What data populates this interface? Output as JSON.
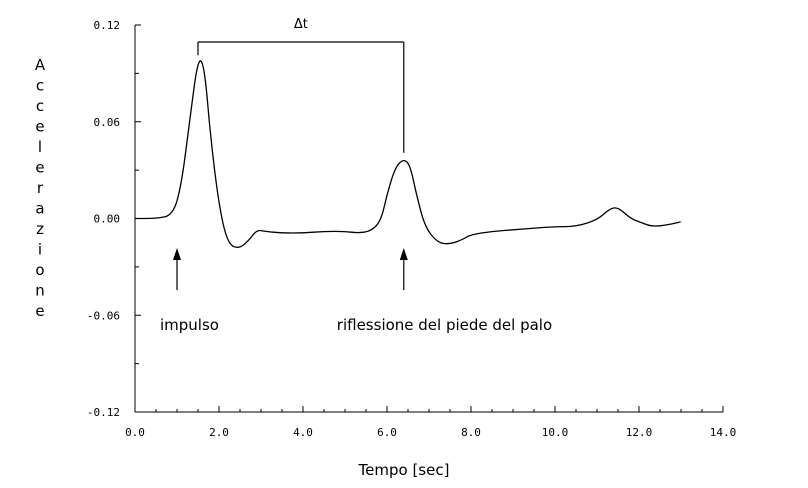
{
  "chart_data": {
    "type": "line",
    "xlabel": "Tempo [sec]",
    "ylabel": "Accelerazione",
    "xlim": [
      0,
      14
    ],
    "ylim": [
      -0.12,
      0.12
    ],
    "x_ticks": [
      "0.0",
      "2.0",
      "4.0",
      "6.0",
      "8.0",
      "10.0",
      "12.0",
      "14.0"
    ],
    "y_ticks": [
      "0.12",
      "0.06",
      "0.00",
      "-0.06",
      "-0.12"
    ],
    "series": [
      {
        "x": [
          0.0,
          0.5,
          0.9,
          1.1,
          1.3,
          1.5,
          1.65,
          1.8,
          2.0,
          2.2,
          2.45,
          2.7,
          2.9,
          3.1,
          3.5,
          4.0,
          4.5,
          5.0,
          5.3,
          5.6,
          5.85,
          6.0,
          6.2,
          6.4,
          6.55,
          6.7,
          6.9,
          7.2,
          7.5,
          7.8,
          8.0,
          8.5,
          9.0,
          9.5,
          10.0,
          10.5,
          11.0,
          11.3,
          11.5,
          11.8,
          12.0,
          12.3,
          12.7,
          13.0
        ],
        "y": [
          0.0,
          0.0,
          0.002,
          0.02,
          0.06,
          0.1,
          0.095,
          0.05,
          0.008,
          -0.015,
          -0.019,
          -0.014,
          -0.007,
          -0.008,
          -0.009,
          -0.009,
          -0.008,
          -0.008,
          -0.009,
          -0.008,
          -0.002,
          0.015,
          0.032,
          0.037,
          0.033,
          0.015,
          -0.005,
          -0.015,
          -0.016,
          -0.013,
          -0.01,
          -0.008,
          -0.007,
          -0.006,
          -0.005,
          -0.005,
          -0.001,
          0.006,
          0.007,
          0.0,
          -0.002,
          -0.005,
          -0.004,
          -0.002
        ]
      }
    ],
    "delta_label": "Δt",
    "annotations": [
      {
        "text": "impulso",
        "x": 1.0
      },
      {
        "text": "riflessione del piede del palo",
        "x": 6.4
      }
    ]
  }
}
